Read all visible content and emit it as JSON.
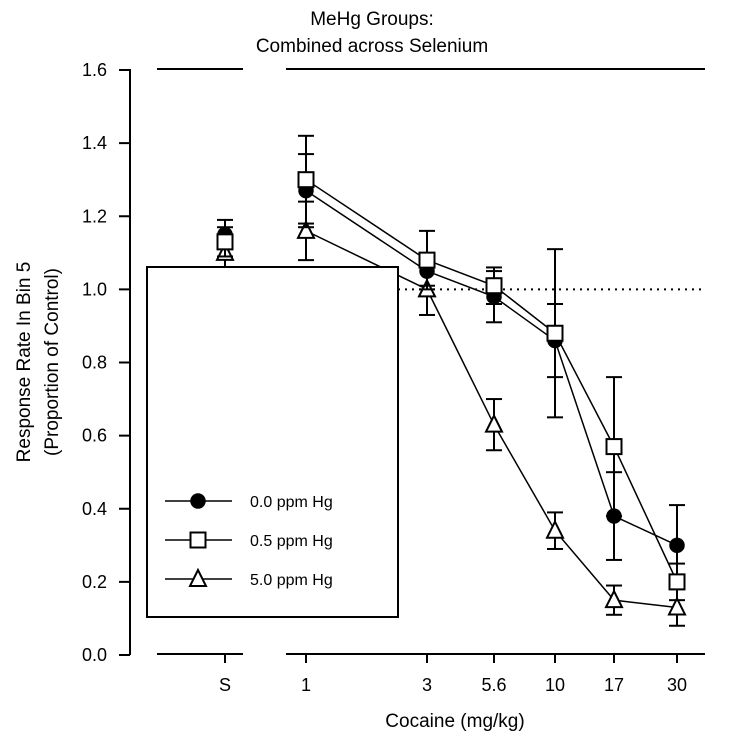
{
  "chart_data": {
    "type": "line",
    "title": [
      "MeHg Groups:",
      "Combined across Selenium"
    ],
    "xlabel": "Cocaine (mg/kg)",
    "ylabel": [
      "Response Rate In Bin 5",
      "(Proportion of Control)"
    ],
    "categories": [
      "S",
      "1",
      "3",
      "5.6",
      "10",
      "17",
      "30"
    ],
    "ylim": [
      0,
      1.6
    ],
    "yticks": [
      "0.0",
      "0.2",
      "0.4",
      "0.6",
      "0.8",
      "1.0",
      "1.2",
      "1.4",
      "1.6"
    ],
    "reference_line": 1.0,
    "legend_position": "bottom-left",
    "series": [
      {
        "name": "0.0 ppm Hg",
        "marker": "filled-circle",
        "values": [
          1.15,
          1.27,
          1.05,
          0.98,
          0.86,
          0.38,
          0.3
        ],
        "errors": [
          0.04,
          0.1,
          0.04,
          0.07,
          0.1,
          0.12,
          0.11
        ]
      },
      {
        "name": "0.5 ppm Hg",
        "marker": "open-square",
        "values": [
          1.13,
          1.3,
          1.08,
          1.01,
          0.88,
          0.57,
          0.2
        ],
        "errors": [
          0.04,
          0.12,
          0.08,
          0.05,
          0.23,
          0.19,
          0.05
        ]
      },
      {
        "name": "5.0 ppm Hg",
        "marker": "open-triangle",
        "values": [
          1.1,
          1.16,
          1.0,
          0.63,
          0.34,
          0.15,
          0.13
        ],
        "errors": [
          0.04,
          0.08,
          0.07,
          0.07,
          0.05,
          0.04,
          0.05
        ]
      }
    ]
  }
}
